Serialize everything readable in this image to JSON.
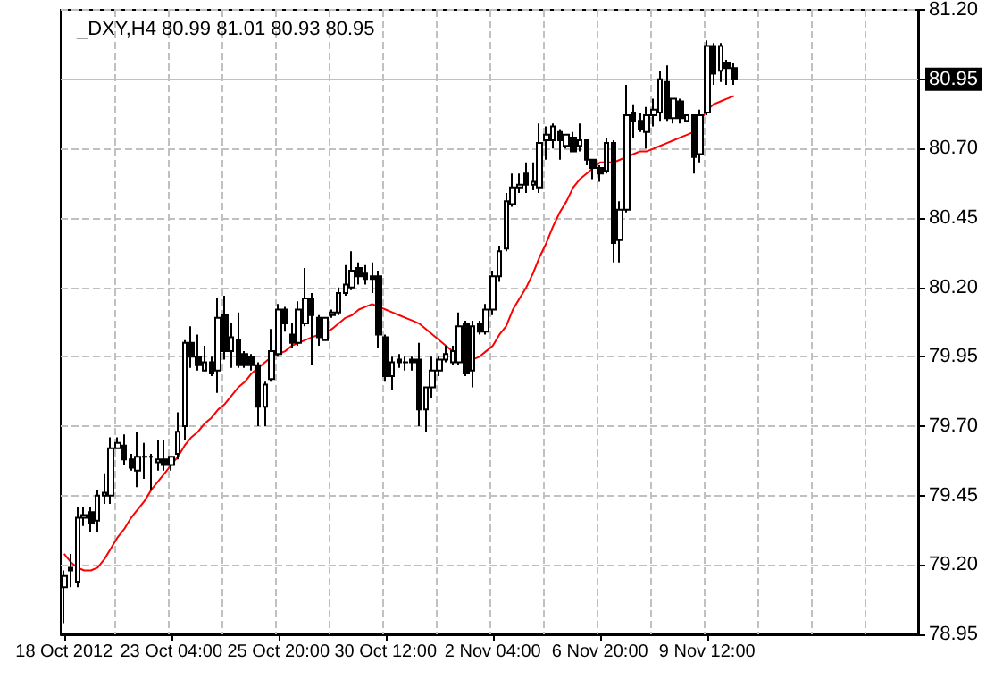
{
  "chart_data": {
    "type": "candlestick",
    "title": "_DXY,H4 80.99 81.01 80.93 80.95",
    "categories": [
      "18 Oct 2012",
      null,
      null,
      null,
      null,
      null,
      null,
      null,
      null,
      null,
      null,
      null,
      null,
      null,
      null,
      null,
      "23 Oct 04:00",
      null,
      null,
      null,
      null,
      null,
      null,
      null,
      null,
      null,
      null,
      null,
      null,
      null,
      null,
      null,
      "25 Oct 20:00",
      null,
      null,
      null,
      null,
      null,
      null,
      null,
      null,
      null,
      null,
      null,
      null,
      null,
      null,
      null,
      "30 Oct 12:00",
      null,
      null,
      null,
      null,
      null,
      null,
      null,
      null,
      null,
      null,
      null,
      null,
      null,
      null,
      null,
      "2 Nov 04:00",
      null,
      null,
      null,
      null,
      null,
      null,
      null,
      null,
      null,
      null,
      null,
      null,
      null,
      null,
      null,
      "6 Nov 20:00",
      null,
      null,
      null,
      null,
      null,
      null,
      null,
      null,
      null,
      null,
      null,
      null,
      null,
      null,
      null,
      "9 Nov 12:00",
      null,
      null,
      null,
      null,
      null,
      null,
      null,
      null,
      null,
      null,
      null,
      null,
      null,
      null,
      null,
      null,
      null,
      null,
      null,
      null,
      null,
      null,
      null,
      null,
      null,
      null,
      null,
      null,
      null,
      null,
      null
    ],
    "series": [
      {
        "color": "#000000",
        "ohlc": [
          [
            79.12,
            79.18,
            78.99,
            79.16
          ],
          [
            79.19,
            79.24,
            79.12,
            79.18
          ],
          [
            79.14,
            79.41,
            79.12,
            79.37
          ],
          [
            79.37,
            79.41,
            79.34,
            79.38
          ],
          [
            79.39,
            79.41,
            79.32,
            79.35
          ],
          [
            79.36,
            79.47,
            79.32,
            79.45
          ],
          [
            79.45,
            79.53,
            79.42,
            79.46
          ],
          [
            79.45,
            79.66,
            79.42,
            79.62
          ],
          [
            79.62,
            79.66,
            79.62,
            79.64
          ],
          [
            79.63,
            79.67,
            79.56,
            79.58
          ],
          [
            79.58,
            79.6,
            79.54,
            79.55
          ],
          [
            79.54,
            79.68,
            79.48,
            79.59
          ],
          [
            79.59,
            79.64,
            79.51,
            79.59
          ],
          [
            79.59,
            79.6,
            79.47,
            79.59
          ],
          [
            79.57,
            79.65,
            79.54,
            79.58
          ],
          [
            79.58,
            79.65,
            79.54,
            79.56
          ],
          [
            79.56,
            79.59,
            79.54,
            79.59
          ],
          [
            79.6,
            79.75,
            79.58,
            79.68
          ],
          [
            79.7,
            80.01,
            79.65,
            80.0
          ],
          [
            80.0,
            80.06,
            79.91,
            79.95
          ],
          [
            79.95,
            80.03,
            79.9,
            79.92
          ],
          [
            79.9,
            79.99,
            79.9,
            79.93
          ],
          [
            79.93,
            79.95,
            79.88,
            79.89
          ],
          [
            79.9,
            80.16,
            79.82,
            80.09
          ],
          [
            80.1,
            80.17,
            79.94,
            79.97
          ],
          [
            79.97,
            80.07,
            79.91,
            80.02
          ],
          [
            80.01,
            80.11,
            79.91,
            79.92
          ],
          [
            79.96,
            79.97,
            79.91,
            79.92
          ],
          [
            79.95,
            79.96,
            79.9,
            79.92
          ],
          [
            79.92,
            79.93,
            79.7,
            79.77
          ],
          [
            79.77,
            79.86,
            79.7,
            79.85
          ],
          [
            79.87,
            80.05,
            79.86,
            79.97
          ],
          [
            79.96,
            80.14,
            79.95,
            80.12
          ],
          [
            80.12,
            80.13,
            80.04,
            80.07
          ],
          [
            80.03,
            80.07,
            79.98,
            80.0
          ],
          [
            80.0,
            80.15,
            79.99,
            80.12
          ],
          [
            80.07,
            80.27,
            80.06,
            80.16
          ],
          [
            80.16,
            80.18,
            79.92,
            80.1
          ],
          [
            80.09,
            80.1,
            79.99,
            80.02
          ],
          [
            80.01,
            80.09,
            80.01,
            80.09
          ],
          [
            80.1,
            80.12,
            80.09,
            80.11
          ],
          [
            80.11,
            80.2,
            80.1,
            80.18
          ],
          [
            80.18,
            80.28,
            80.17,
            80.21
          ],
          [
            80.2,
            80.33,
            80.19,
            80.26
          ],
          [
            80.27,
            80.29,
            80.21,
            80.24
          ],
          [
            80.25,
            80.28,
            80.21,
            80.23
          ],
          [
            80.24,
            80.29,
            80.18,
            80.23
          ],
          [
            80.24,
            80.26,
            79.98,
            80.03
          ],
          [
            80.02,
            80.03,
            79.86,
            79.88
          ],
          [
            79.88,
            79.95,
            79.83,
            79.93
          ],
          [
            79.94,
            79.96,
            79.91,
            79.93
          ],
          [
            79.93,
            79.95,
            79.9,
            79.93
          ],
          [
            79.94,
            79.95,
            79.9,
            79.93
          ],
          [
            79.94,
            80.0,
            79.7,
            79.76
          ],
          [
            79.76,
            79.84,
            79.68,
            79.84
          ],
          [
            79.84,
            79.95,
            79.8,
            79.9
          ],
          [
            79.9,
            79.95,
            79.88,
            79.94
          ],
          [
            79.94,
            79.99,
            79.93,
            79.96
          ],
          [
            79.93,
            79.99,
            79.92,
            79.97
          ],
          [
            79.93,
            80.11,
            79.92,
            80.06
          ],
          [
            80.07,
            80.08,
            79.88,
            79.89
          ],
          [
            79.9,
            80.08,
            79.84,
            80.06
          ],
          [
            80.07,
            80.08,
            80.03,
            80.04
          ],
          [
            80.04,
            80.14,
            80.03,
            80.12
          ],
          [
            80.12,
            80.26,
            80.1,
            80.24
          ],
          [
            80.24,
            80.35,
            80.22,
            80.33
          ],
          [
            80.34,
            80.54,
            80.33,
            80.51
          ],
          [
            80.5,
            80.61,
            80.49,
            80.56
          ],
          [
            80.56,
            80.61,
            80.54,
            80.57
          ],
          [
            80.61,
            80.65,
            80.54,
            80.57
          ],
          [
            80.57,
            80.65,
            80.55,
            80.58
          ],
          [
            80.56,
            80.79,
            80.54,
            80.72
          ],
          [
            80.73,
            80.78,
            80.66,
            80.75
          ],
          [
            80.73,
            80.79,
            80.7,
            80.78
          ],
          [
            80.76,
            80.77,
            80.66,
            80.73
          ],
          [
            80.71,
            80.75,
            80.7,
            80.75
          ],
          [
            80.74,
            80.76,
            80.69,
            80.69
          ],
          [
            80.71,
            80.79,
            80.69,
            80.73
          ],
          [
            80.73,
            80.73,
            80.64,
            80.66
          ],
          [
            80.66,
            80.66,
            80.59,
            80.63
          ],
          [
            80.63,
            80.64,
            80.58,
            80.61
          ],
          [
            80.62,
            80.74,
            80.61,
            80.72
          ],
          [
            80.72,
            80.73,
            80.29,
            80.36
          ],
          [
            80.37,
            80.51,
            80.29,
            80.48
          ],
          [
            80.48,
            80.93,
            80.47,
            80.82
          ],
          [
            80.83,
            80.86,
            80.74,
            80.8
          ],
          [
            80.8,
            80.83,
            80.76,
            80.77
          ],
          [
            80.76,
            80.85,
            80.7,
            80.82
          ],
          [
            80.82,
            80.88,
            80.78,
            80.84
          ],
          [
            80.83,
            80.98,
            80.8,
            80.95
          ],
          [
            80.94,
            81.0,
            80.8,
            80.81
          ],
          [
            80.81,
            80.88,
            80.79,
            80.88
          ],
          [
            80.87,
            80.88,
            80.79,
            80.81
          ],
          [
            80.8,
            80.82,
            80.8,
            80.82
          ],
          [
            80.82,
            80.82,
            80.61,
            80.67
          ],
          [
            80.68,
            80.84,
            80.65,
            80.82
          ],
          [
            80.83,
            81.09,
            80.82,
            81.07
          ],
          [
            81.07,
            81.08,
            80.93,
            80.97
          ],
          [
            80.98,
            81.08,
            80.94,
            81.07
          ],
          [
            81.01,
            81.02,
            80.93,
            80.99
          ],
          [
            80.99,
            81.01,
            80.93,
            80.95
          ],
          null,
          null,
          null,
          null,
          null,
          null,
          null,
          null,
          null,
          null,
          null,
          null,
          null,
          null,
          null,
          null,
          null,
          null,
          null,
          null,
          null,
          null,
          null,
          null,
          null,
          null,
          null
        ]
      },
      {
        "type": "line",
        "color": "#ff0000",
        "line_style": "solid",
        "values": [
          79.24,
          79.21,
          79.19,
          79.18,
          79.18,
          79.19,
          79.22,
          79.26,
          79.3,
          79.33,
          79.37,
          79.4,
          79.43,
          79.47,
          79.5,
          79.53,
          79.56,
          79.59,
          79.63,
          79.66,
          79.68,
          79.71,
          79.73,
          79.76,
          79.78,
          79.81,
          79.84,
          79.86,
          79.89,
          79.91,
          79.93,
          79.95,
          79.96,
          79.97,
          79.99,
          80.0,
          80.01,
          80.02,
          80.03,
          80.04,
          80.05,
          80.07,
          80.09,
          80.1,
          80.12,
          80.13,
          80.14,
          80.13,
          80.12,
          80.11,
          80.1,
          80.09,
          80.08,
          80.07,
          80.05,
          80.03,
          80.01,
          79.99,
          79.97,
          null,
          null,
          79.94,
          79.95,
          79.97,
          79.99,
          80.03,
          80.06,
          80.12,
          80.16,
          80.2,
          80.25,
          80.31,
          80.36,
          80.42,
          80.47,
          80.51,
          80.56,
          80.59,
          80.61,
          80.63,
          80.65,
          80.65,
          80.65,
          80.66,
          80.67,
          80.68,
          80.69,
          80.69,
          80.7,
          80.71,
          80.72,
          80.73,
          80.74,
          80.75,
          80.76,
          80.8,
          80.84,
          80.86,
          80.87,
          80.88,
          80.89,
          null,
          null,
          null,
          null,
          null,
          null,
          null,
          null,
          null,
          null,
          null,
          null,
          null,
          null,
          null,
          null,
          null,
          null,
          null,
          null,
          null,
          null,
          null,
          null,
          null,
          null,
          null
        ]
      }
    ],
    "ylim": [
      78.95,
      81.2
    ],
    "yticks": [
      78.95,
      {
        "value": 79.2,
        "label": "79.20"
      },
      79.45,
      {
        "value": 79.7,
        "label": "79.70"
      },
      79.95,
      {
        "value": 80.2,
        "label": "80.20"
      },
      80.45,
      {
        "value": 80.7,
        "label": "80.70"
      },
      80.95,
      {
        "value": 81.2,
        "label": "81.20"
      }
    ],
    "ref_lines": [
      {
        "axis": "y",
        "value": 80.95,
        "label": "80.95",
        "color": "#c0c0c0",
        "line_style": "solid"
      }
    ],
    "grid": true,
    "marker": "none"
  }
}
